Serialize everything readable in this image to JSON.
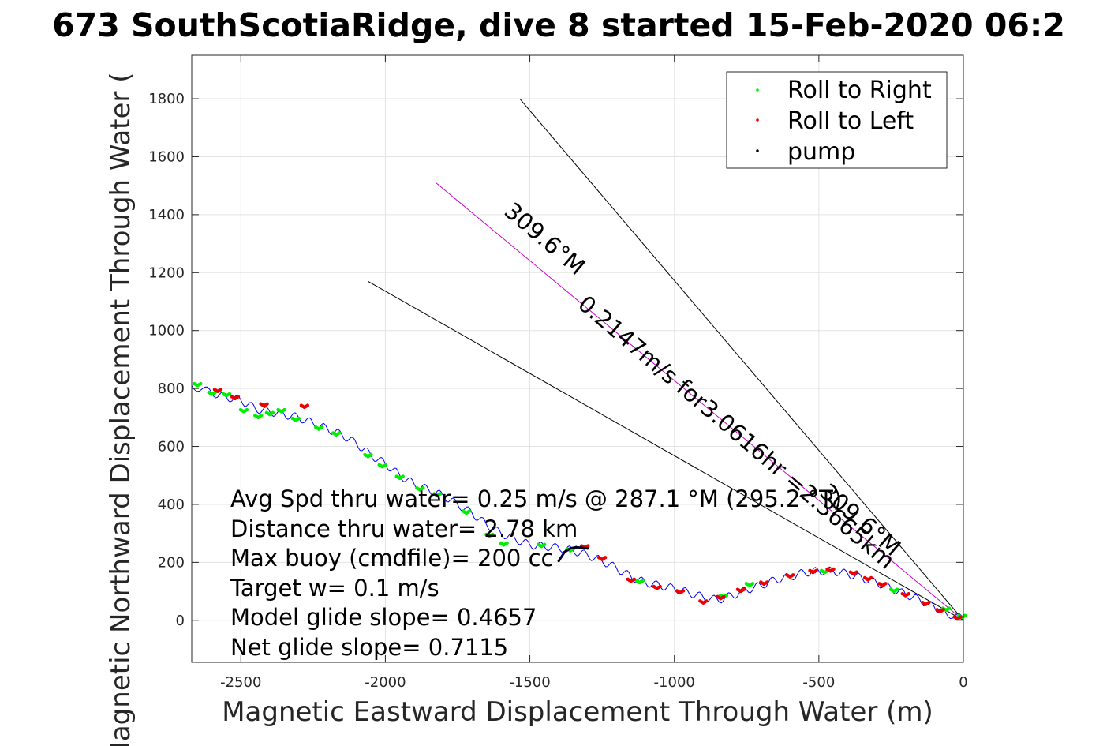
{
  "chart_data": {
    "type": "line",
    "title": "673 SouthScotiaRidge, dive 8 started 15-Feb-2020 06:2",
    "xlabel": "Magnetic Eastward Displacement Through Water (m)",
    "ylabel": "Magnetic Northward Displacement Through Water (",
    "xlim": [
      -2670,
      0
    ],
    "ylim": [
      -145,
      1950
    ],
    "xticks": [
      -2500,
      -2000,
      -1500,
      -1000,
      -500,
      0
    ],
    "yticks": [
      0,
      200,
      400,
      600,
      800,
      1000,
      1200,
      1400,
      1600,
      1800
    ],
    "grid": true,
    "legend_placement": "top-right",
    "legend": [
      {
        "label": "Roll to Right",
        "color": "#00ee00"
      },
      {
        "label": "Roll to Left",
        "color": "#ee0000"
      },
      {
        "label": "pump",
        "color": "#000000"
      }
    ],
    "track": {
      "color": "#0000ff",
      "x": [
        0,
        -60,
        -100,
        -150,
        -200,
        -250,
        -300,
        -350,
        -400,
        -450,
        -500,
        -550,
        -600,
        -650,
        -700,
        -750,
        -800,
        -850,
        -900,
        -950,
        -1000,
        -1050,
        -1100,
        -1150,
        -1200,
        -1250,
        -1300,
        -1350,
        -1400,
        -1450,
        -1500,
        -1550,
        -1600,
        -1650,
        -1700,
        -1750,
        -1800,
        -1850,
        -1900,
        -1950,
        -2000,
        -2050,
        -2100,
        -2150,
        -2200,
        -2250,
        -2300,
        -2350,
        -2400,
        -2450,
        -2500,
        -2550,
        -2600,
        -2670
      ],
      "y": [
        5,
        25,
        45,
        70,
        90,
        110,
        130,
        145,
        160,
        170,
        170,
        165,
        150,
        140,
        120,
        105,
        85,
        70,
        80,
        95,
        110,
        120,
        130,
        150,
        180,
        205,
        225,
        240,
        250,
        255,
        260,
        280,
        300,
        330,
        370,
        400,
        430,
        450,
        470,
        500,
        540,
        570,
        610,
        640,
        660,
        680,
        700,
        710,
        720,
        730,
        760,
        770,
        785,
        810
      ]
    },
    "roll_right_x": [
      -5,
      -60,
      -240,
      -480,
      -740,
      -830,
      -1120,
      -1360,
      -1460,
      -1590,
      -1640,
      -1720,
      -1820,
      -1880,
      -1950,
      -2010,
      -2060,
      -2170,
      -2230,
      -2310,
      -2360,
      -2400,
      -2440,
      -2490,
      -2550,
      -2600,
      -2650
    ],
    "roll_right_y": [
      10,
      35,
      100,
      165,
      120,
      80,
      130,
      240,
      255,
      260,
      290,
      370,
      430,
      450,
      490,
      530,
      565,
      640,
      660,
      690,
      720,
      710,
      700,
      720,
      775,
      780,
      810
    ],
    "roll_left_x": [
      -20,
      -80,
      -130,
      -200,
      -280,
      -330,
      -380,
      -460,
      -520,
      -600,
      -690,
      -770,
      -840,
      -900,
      -980,
      -1060,
      -1150,
      -1250,
      -1310,
      -2280,
      -2420,
      -2520,
      -2580
    ],
    "roll_left_y": [
      5,
      30,
      55,
      85,
      120,
      140,
      160,
      170,
      165,
      150,
      125,
      100,
      75,
      60,
      95,
      110,
      135,
      210,
      250,
      735,
      740,
      765,
      790
    ],
    "pump": {
      "x": [
        -1400,
        -1380,
        -1360,
        -1340,
        -1320,
        -1300
      ],
      "y": [
        205,
        235,
        248,
        252,
        250,
        248
      ]
    },
    "heading_lines": [
      {
        "name": "line-upper",
        "x": [
          0,
          -1535
        ],
        "y": [
          0,
          1800
        ],
        "color": "#000000"
      },
      {
        "name": "line-middle",
        "x": [
          0,
          -1825
        ],
        "y": [
          0,
          1510
        ],
        "color": "#cc00cc"
      },
      {
        "name": "line-lower",
        "x": [
          0,
          -2060
        ],
        "y": [
          0,
          1170
        ],
        "color": "#000000"
      }
    ],
    "rotated_labels": [
      "309.6°M",
      "0.2147m/s for3.0616hr =2.3665km",
      "309.6°M"
    ],
    "annotations": [
      "Avg Spd thru water=  0.25 m/s @ 287.1  °M (295.2 °T)",
      "Distance thru water=  2.78 km",
      "Max buoy (cmdfile)= 200 cc",
      "Target w= 0.1 m/s",
      "Model glide slope= 0.4657",
      "Net glide slope= 0.7115"
    ]
  }
}
